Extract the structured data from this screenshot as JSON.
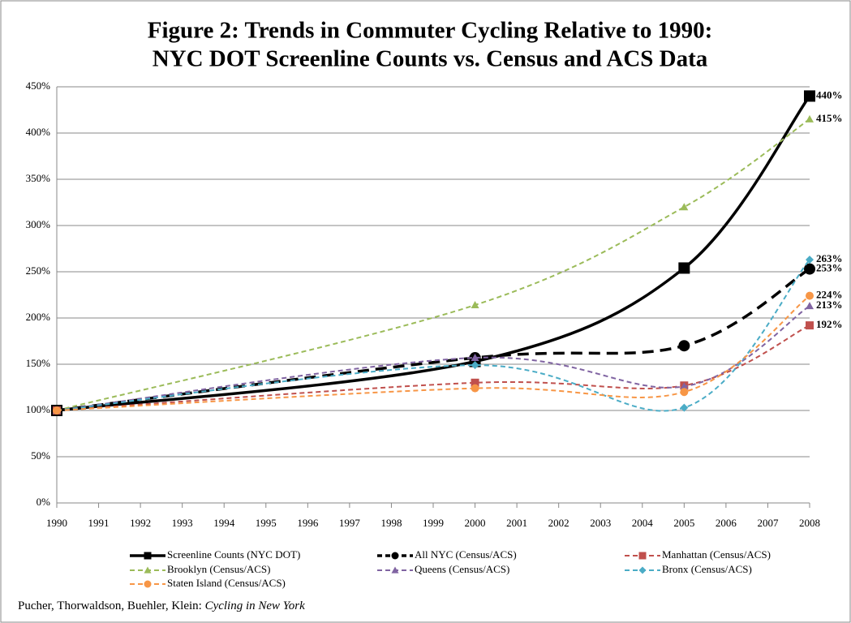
{
  "chart_data": {
    "type": "line",
    "title": "Figure 2: Trends in Commuter Cycling Relative to 1990:",
    "subtitle": "NYC DOT Screenline Counts vs. Census and ACS Data",
    "x": [
      1990,
      2000,
      2005,
      2008
    ],
    "xlim": [
      1990,
      2008
    ],
    "xticks": [
      1990,
      1991,
      1992,
      1993,
      1994,
      1995,
      1996,
      1997,
      1998,
      1999,
      2000,
      2001,
      2002,
      2003,
      2004,
      2005,
      2006,
      2007,
      2008
    ],
    "ylim": [
      0,
      450
    ],
    "yticks": [
      {
        "value": 0,
        "label": "0%"
      },
      {
        "value": 50,
        "label": "50%"
      },
      {
        "value": 100,
        "label": "100%"
      },
      {
        "value": 150,
        "label": "150%"
      },
      {
        "value": 200,
        "label": "200%"
      },
      {
        "value": 250,
        "label": "250%"
      },
      {
        "value": 300,
        "label": "300%"
      },
      {
        "value": 350,
        "label": "350%"
      },
      {
        "value": 400,
        "label": "400%"
      },
      {
        "value": 450,
        "label": "450%"
      }
    ],
    "grid": true,
    "smooth": true,
    "legend": "bottom",
    "series": [
      {
        "name": "Screenline Counts (NYC DOT)",
        "color": "#000000",
        "style": "solid",
        "marker": "square",
        "values": [
          100,
          153,
          254,
          440
        ],
        "value_labels": [
          null,
          null,
          null,
          "440%"
        ]
      },
      {
        "name": "All NYC (Census/ACS)",
        "color": "#000000",
        "style": "dashed",
        "marker": "circle",
        "values": [
          100,
          157,
          170,
          253
        ],
        "value_labels": [
          null,
          null,
          null,
          "253%"
        ]
      },
      {
        "name": "Manhattan (Census/ACS)",
        "color": "#c0504d",
        "style": "dashed",
        "marker": "square",
        "values": [
          100,
          130,
          127,
          192
        ],
        "value_labels": [
          null,
          null,
          null,
          "192%"
        ]
      },
      {
        "name": "Brooklyn (Census/ACS)",
        "color": "#9bbb59",
        "style": "dashed",
        "marker": "triangle",
        "values": [
          100,
          214,
          320,
          415
        ],
        "value_labels": [
          null,
          null,
          null,
          "415%"
        ]
      },
      {
        "name": "Queens (Census/ACS)",
        "color": "#8064a2",
        "style": "dashed",
        "marker": "triangle",
        "values": [
          100,
          157,
          126,
          213
        ],
        "value_labels": [
          null,
          null,
          null,
          "213%"
        ]
      },
      {
        "name": "Bronx (Census/ACS)",
        "color": "#4bacc6",
        "style": "dashed",
        "marker": "diamond",
        "values": [
          100,
          149,
          103,
          263
        ],
        "value_labels": [
          null,
          null,
          null,
          "263%"
        ]
      },
      {
        "name": "Staten Island (Census/ACS)",
        "color": "#f79646",
        "style": "dashed",
        "marker": "circle",
        "values": [
          100,
          124,
          120,
          224
        ],
        "value_labels": [
          null,
          null,
          null,
          "224%"
        ]
      }
    ],
    "source_authors": "Pucher, Thorwaldson, Buehler, Klein: ",
    "source_title": "Cycling in New York"
  }
}
